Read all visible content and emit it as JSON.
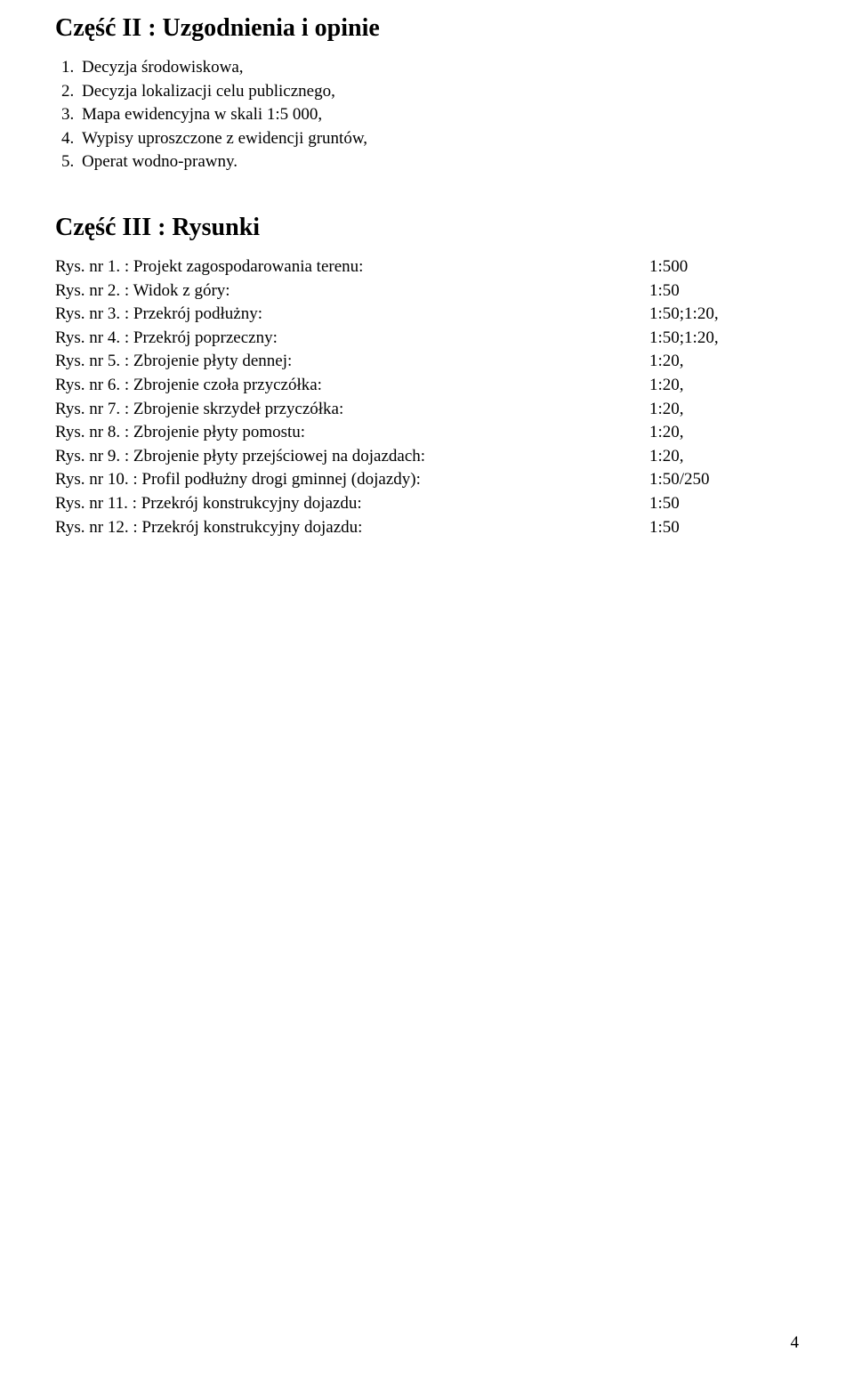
{
  "part2": {
    "title": "Część II : Uzgodnienia i opinie",
    "items": [
      "Decyzja środowiskowa,",
      "Decyzja lokalizacji celu publicznego,",
      "Mapa ewidencyjna w skali 1:5 000,",
      "Wypisy uproszczone z ewidencji gruntów,",
      "Operat wodno-prawny."
    ]
  },
  "part3": {
    "title": "Część III : Rysunki",
    "rows": [
      {
        "label": "Rys. nr 1. : Projekt zagospodarowania terenu:",
        "value": "1:500"
      },
      {
        "label": "Rys. nr 2. : Widok z góry:",
        "value": "1:50"
      },
      {
        "label": "Rys. nr 3. : Przekrój podłużny:",
        "value": "1:50;1:20,"
      },
      {
        "label": "Rys. nr 4. : Przekrój poprzeczny:",
        "value": "1:50;1:20,"
      },
      {
        "label": "Rys. nr 5. : Zbrojenie płyty dennej:",
        "value": "1:20,"
      },
      {
        "label": "Rys. nr 6. : Zbrojenie czoła przyczółka:",
        "value": "1:20,"
      },
      {
        "label": "Rys. nr 7. : Zbrojenie skrzydeł przyczółka:",
        "value": "1:20,"
      },
      {
        "label": "Rys. nr 8. : Zbrojenie płyty pomostu:",
        "value": "1:20,"
      },
      {
        "label": "Rys. nr 9. : Zbrojenie płyty przejściowej na dojazdach:",
        "value": "1:20,"
      },
      {
        "label": "Rys. nr 10. : Profil podłużny drogi gminnej (dojazdy):",
        "value": "1:50/250"
      },
      {
        "label": "Rys. nr 11. : Przekrój konstrukcyjny dojazdu:",
        "value": "1:50"
      },
      {
        "label": "Rys. nr 12. : Przekrój konstrukcyjny dojazdu:",
        "value": "1:50"
      }
    ]
  },
  "page_number": "4"
}
